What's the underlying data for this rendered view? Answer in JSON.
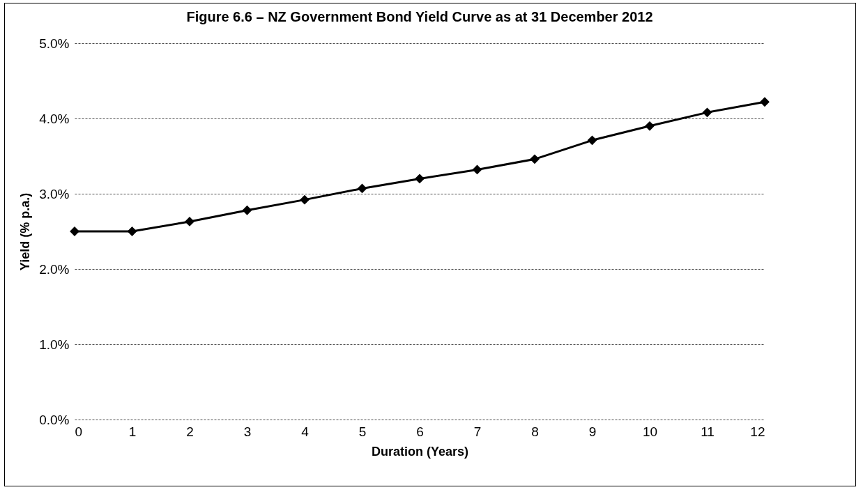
{
  "chart_data": {
    "type": "line",
    "title": "Figure 6.6 – NZ Government Bond Yield Curve as at 31 December 2012",
    "xlabel": "Duration (Years)",
    "ylabel": "Yield (% p.a.)",
    "x": [
      0,
      1,
      2,
      3,
      4,
      5,
      6,
      7,
      8,
      9,
      10,
      11,
      12
    ],
    "series": [
      {
        "color": "#000000",
        "values": [
          2.5,
          2.5,
          2.63,
          2.78,
          2.92,
          3.07,
          3.2,
          3.32,
          3.46,
          3.71,
          3.9,
          4.08,
          4.22
        ]
      }
    ],
    "xlim": [
      0,
      12
    ],
    "xticks": [
      0,
      1,
      2,
      3,
      4,
      5,
      6,
      7,
      8,
      9,
      10,
      11,
      12
    ],
    "ylim": [
      0,
      5
    ],
    "yticks": [
      {
        "value": 0,
        "label": "0.0%"
      },
      {
        "value": 1,
        "label": "1.0%"
      },
      {
        "value": 2,
        "label": "2.0%"
      },
      {
        "value": 3,
        "label": "3.0%"
      },
      {
        "value": 4,
        "label": "4.0%"
      },
      {
        "value": 5,
        "label": "5.0%"
      }
    ],
    "grid": "y",
    "marker": "diamond",
    "line_style": "solid"
  }
}
